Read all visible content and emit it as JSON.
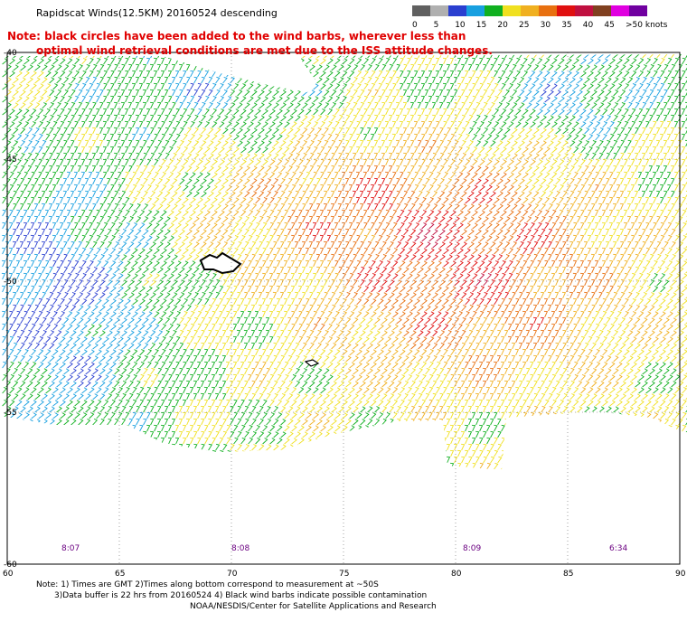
{
  "header": {
    "title": "Rapidscat Winds(12.5KM) 20160524 descending",
    "note_line1": "Note: black circles have been added to the wind barbs, wherever less than",
    "note_line2": "optimal wind retrieval conditions are met due to the ISS attitude changes."
  },
  "legend": {
    "ticks": [
      "0",
      "5",
      "10",
      "15",
      "20",
      "25",
      "30",
      "35",
      "40",
      "45",
      ">50 knots"
    ],
    "colors": [
      "#606060",
      "#b0b0b0",
      "#2a3fd0",
      "#18a0e0",
      "#10b020",
      "#f0e020",
      "#f0b020",
      "#e87010",
      "#e01010",
      "#c01040",
      "#804020",
      "#e000e0",
      "#7000a0"
    ]
  },
  "axes": {
    "lat_labels": [
      "-40",
      "-45",
      "-50",
      "-55",
      "-60"
    ],
    "lon_labels": [
      "60",
      "65",
      "70",
      "75",
      "80",
      "85",
      "90"
    ]
  },
  "times": [
    "8:07",
    "8:08",
    "8:09",
    "6:34"
  ],
  "footer": {
    "line1": "Note: 1) Times are GMT 2)Times along bottom correspond to measurement at ~50S",
    "line2": "3)Data buffer is 22 hrs from 20160524 4) Black wind barbs indicate possible contamination",
    "line3": "NOAA/NESDIS/Center for Satellite Applications and Research"
  }
}
